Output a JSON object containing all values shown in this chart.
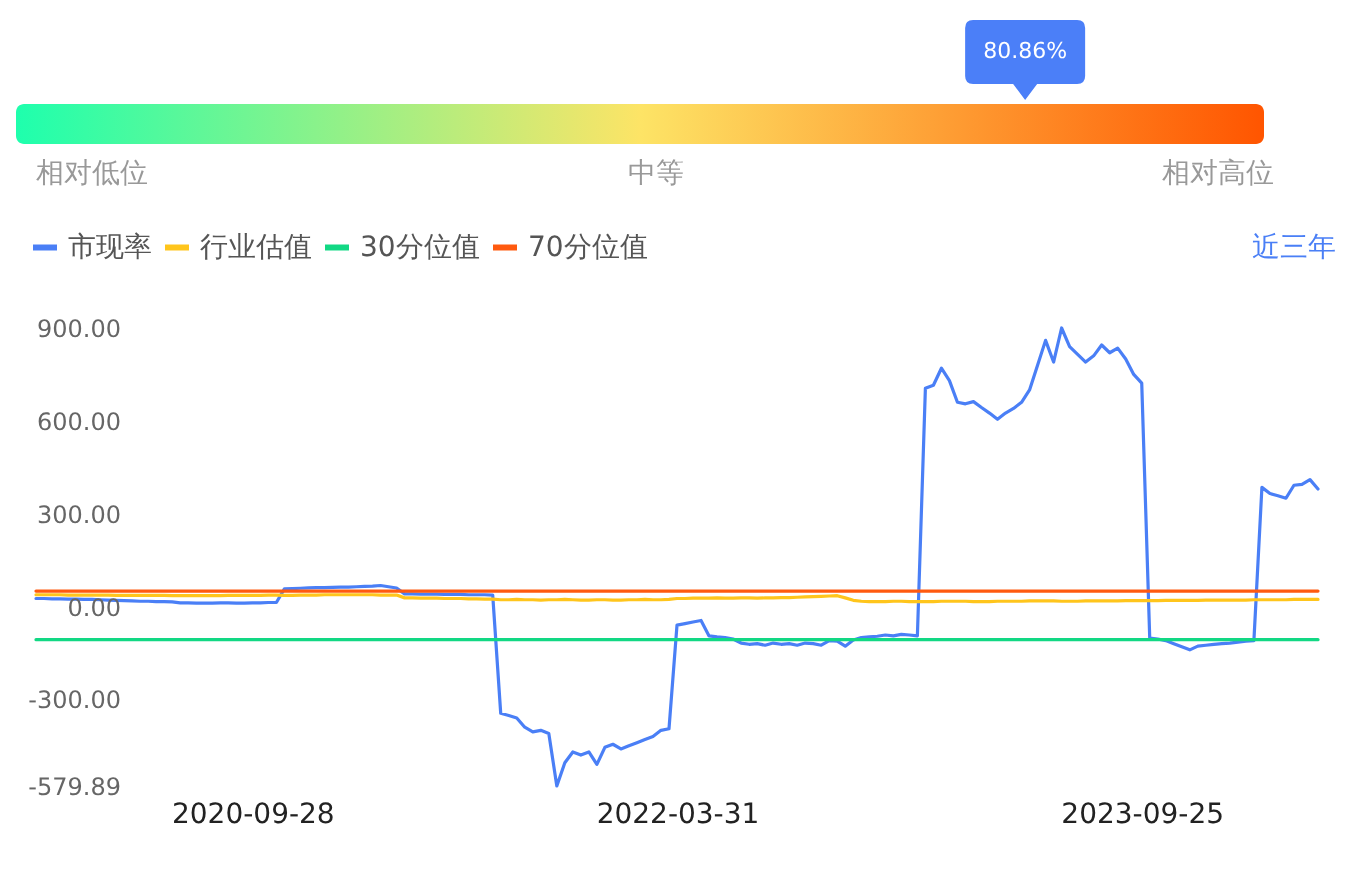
{
  "chart_data": [
    {
      "type": "other",
      "annotations": [
        "相对低位",
        "中等",
        "相对高位"
      ],
      "values": [
        80.86
      ],
      "value_labels": [
        "80.86%"
      ],
      "color": "#4b7ff8"
    },
    {
      "type": "line",
      "legend": "top left",
      "annotations": [
        "近三年"
      ],
      "categories": [
        null,
        null,
        null,
        null,
        null,
        null,
        null,
        null,
        null,
        null,
        null,
        null,
        null,
        null,
        null,
        null,
        null,
        null,
        null,
        null,
        null,
        null,
        null,
        null,
        null,
        null,
        null,
        "2020-09-28",
        null,
        null,
        null,
        null,
        null,
        null,
        null,
        null,
        null,
        null,
        null,
        null,
        null,
        null,
        null,
        null,
        null,
        null,
        null,
        null,
        null,
        null,
        null,
        null,
        null,
        null,
        null,
        null,
        null,
        null,
        null,
        null,
        null,
        null,
        null,
        null,
        null,
        null,
        null,
        null,
        null,
        null,
        null,
        null,
        null,
        null,
        null,
        null,
        null,
        null,
        null,
        null,
        "2022-03-31",
        null,
        null,
        null,
        null,
        null,
        null,
        null,
        null,
        null,
        null,
        null,
        null,
        null,
        null,
        null,
        null,
        null,
        null,
        null,
        null,
        null,
        null,
        null,
        null,
        null,
        null,
        null,
        null,
        null,
        null,
        null,
        null,
        null,
        null,
        null,
        null,
        null,
        null,
        null,
        null,
        null,
        null,
        null,
        null,
        null,
        null,
        null,
        null,
        null,
        null,
        null,
        null,
        null,
        null,
        null,
        null,
        null,
        "2023-09-25",
        null,
        null,
        null,
        null,
        null,
        null,
        null,
        null,
        null,
        null,
        null,
        null,
        null,
        null,
        null,
        null,
        null,
        null,
        null,
        null,
        null,
        null
      ],
      "ylim": [
        -579.89,
        900
      ],
      "yticks": [
        -579.89,
        {
          "value": -300,
          "label": "-300.00"
        },
        {
          "value": 0,
          "label": "0.00"
        },
        {
          "value": 300,
          "label": "300.00"
        },
        {
          "value": 600,
          "label": "600.00"
        },
        {
          "value": 900,
          "label": "900.00"
        }
      ],
      "series": [
        {
          "name": "市现率",
          "color": "#4a7ff6",
          "values": [
            26,
            26,
            25,
            25,
            24,
            24,
            23,
            23,
            22,
            21,
            20,
            19,
            18,
            17,
            17,
            16,
            16,
            15,
            12,
            12,
            11,
            11,
            11,
            12,
            12,
            11,
            11,
            12,
            12,
            13,
            13,
            57,
            58,
            59,
            60,
            61,
            61,
            62,
            63,
            63,
            64,
            65,
            66,
            68,
            64,
            60,
            41,
            41,
            40,
            40,
            40,
            39,
            39,
            39,
            38,
            38,
            38,
            37,
            -345,
            -352,
            -360,
            -390,
            -405,
            -400,
            -410,
            -579.89,
            -505,
            -470,
            -480,
            -470,
            -510,
            -455,
            -445,
            -460,
            -450,
            -440,
            -430,
            -420,
            -400,
            -395,
            -60,
            -55,
            -50,
            -45,
            -95,
            -98,
            -100,
            -105,
            -118,
            -122,
            -120,
            -125,
            -118,
            -122,
            -120,
            -125,
            -118,
            -120,
            -125,
            -110,
            -112,
            -128,
            -108,
            -100,
            -98,
            -96,
            -92,
            -95,
            -90,
            -92,
            -95,
            705,
            715,
            770,
            730,
            660,
            655,
            662,
            643,
            625,
            605,
            625,
            640,
            660,
            700,
            780,
            860,
            790,
            900,
            840,
            815,
            790,
            810,
            845,
            820,
            835,
            800,
            750,
            722,
            -102,
            -105,
            -110,
            -120,
            -130,
            -140,
            -128,
            -125,
            -122,
            -120,
            -118,
            -115,
            -112,
            -110,
            385,
            365,
            358,
            350,
            392,
            395,
            410,
            380
          ]
        },
        {
          "name": "行业估值",
          "color": "#ffc51c",
          "values": [
            38,
            38,
            38,
            38,
            37,
            37,
            37,
            37,
            37,
            37,
            36,
            36,
            36,
            36,
            36,
            36,
            36,
            35,
            35,
            35,
            35,
            35,
            35,
            35,
            36,
            36,
            36,
            36,
            36,
            37,
            37,
            36,
            36,
            37,
            37,
            37,
            38,
            38,
            38,
            38,
            38,
            38,
            38,
            37,
            37,
            37,
            28,
            28,
            27,
            27,
            27,
            26,
            26,
            26,
            25,
            25,
            24,
            24,
            22,
            22,
            23,
            22,
            22,
            21,
            22,
            22,
            23,
            22,
            21,
            21,
            22,
            22,
            21,
            21,
            22,
            22,
            23,
            22,
            22,
            23,
            26,
            26,
            27,
            27,
            27,
            28,
            27,
            27,
            28,
            28,
            27,
            28,
            28,
            29,
            29,
            30,
            31,
            32,
            33,
            34,
            35,
            28,
            20,
            17,
            16,
            16,
            16,
            17,
            17,
            16,
            16,
            16,
            16,
            17,
            17,
            17,
            17,
            16,
            16,
            16,
            17,
            17,
            17,
            17,
            18,
            18,
            18,
            18,
            17,
            17,
            17,
            18,
            18,
            18,
            18,
            18,
            19,
            19,
            19,
            19,
            19,
            20,
            20,
            20,
            20,
            20,
            21,
            21,
            21,
            21,
            21,
            21,
            22,
            22,
            22,
            22,
            22,
            23,
            23,
            23,
            23
          ]
        },
        {
          "name": "30分位值",
          "color": "#12d884",
          "values": [
            -107,
            -107,
            -107,
            -107,
            -107,
            -107,
            -107,
            -107,
            -107,
            -107,
            -107,
            -107,
            -107,
            -107,
            -107,
            -107,
            -107,
            -107,
            -107,
            -107,
            -107,
            -107,
            -107,
            -107,
            -107,
            -107,
            -107,
            -107,
            -107,
            -107,
            -107,
            -107,
            -107,
            -107,
            -107,
            -107,
            -107,
            -107,
            -107,
            -107,
            -107,
            -107,
            -107,
            -107,
            -107,
            -107,
            -107,
            -107,
            -107,
            -107,
            -107,
            -107,
            -107,
            -107,
            -107,
            -107,
            -107,
            -107,
            -107,
            -107,
            -107,
            -107,
            -107,
            -107,
            -107,
            -107,
            -107,
            -107,
            -107,
            -107,
            -107,
            -107,
            -107,
            -107,
            -107,
            -107,
            -107,
            -107,
            -107,
            -107,
            -107,
            -107,
            -107,
            -107,
            -107,
            -107,
            -107,
            -107,
            -107,
            -107,
            -107,
            -107,
            -107,
            -107,
            -107,
            -107,
            -107,
            -107,
            -107,
            -107,
            -107,
            -107,
            -107,
            -107,
            -107,
            -107,
            -107,
            -107,
            -107,
            -107,
            -107,
            -107,
            -107,
            -107,
            -107,
            -107,
            -107,
            -107,
            -107,
            -107,
            -107,
            -107,
            -107,
            -107,
            -107,
            -107,
            -107,
            -107,
            -107,
            -107,
            -107,
            -107,
            -107,
            -107,
            -107,
            -107,
            -107,
            -107,
            -107,
            -107,
            -107,
            -107,
            -107,
            -107,
            -107,
            -107,
            -107,
            -107,
            -107,
            -107,
            -107,
            -107,
            -107,
            -107,
            -107,
            -107,
            -107,
            -107,
            -107,
            -107,
            -107
          ]
        },
        {
          "name": "70分位值",
          "color": "#ff5a0f",
          "values": [
            50,
            50,
            50,
            50,
            50,
            50,
            50,
            50,
            50,
            50,
            50,
            50,
            50,
            50,
            50,
            50,
            50,
            50,
            50,
            50,
            50,
            50,
            50,
            50,
            50,
            50,
            50,
            50,
            50,
            50,
            50,
            50,
            50,
            50,
            50,
            50,
            50,
            50,
            50,
            50,
            50,
            50,
            50,
            50,
            50,
            50,
            50,
            50,
            50,
            50,
            50,
            50,
            50,
            50,
            50,
            50,
            50,
            50,
            50,
            50,
            50,
            50,
            50,
            50,
            50,
            50,
            50,
            50,
            50,
            50,
            50,
            50,
            50,
            50,
            50,
            50,
            50,
            50,
            50,
            50,
            50,
            50,
            50,
            50,
            50,
            50,
            50,
            50,
            50,
            50,
            50,
            50,
            50,
            50,
            50,
            50,
            50,
            50,
            50,
            50,
            50,
            50,
            50,
            50,
            50,
            50,
            50,
            50,
            50,
            50,
            50,
            50,
            50,
            50,
            50,
            50,
            50,
            50,
            50,
            50,
            50,
            50,
            50,
            50,
            50,
            50,
            50,
            50,
            50,
            50,
            50,
            50,
            50,
            50,
            50,
            50,
            50,
            50,
            50,
            50,
            50,
            50,
            50,
            50,
            50,
            50,
            50,
            50,
            50,
            50,
            50,
            50,
            50,
            50,
            50,
            50,
            50,
            50,
            50,
            50,
            50
          ]
        }
      ]
    }
  ]
}
